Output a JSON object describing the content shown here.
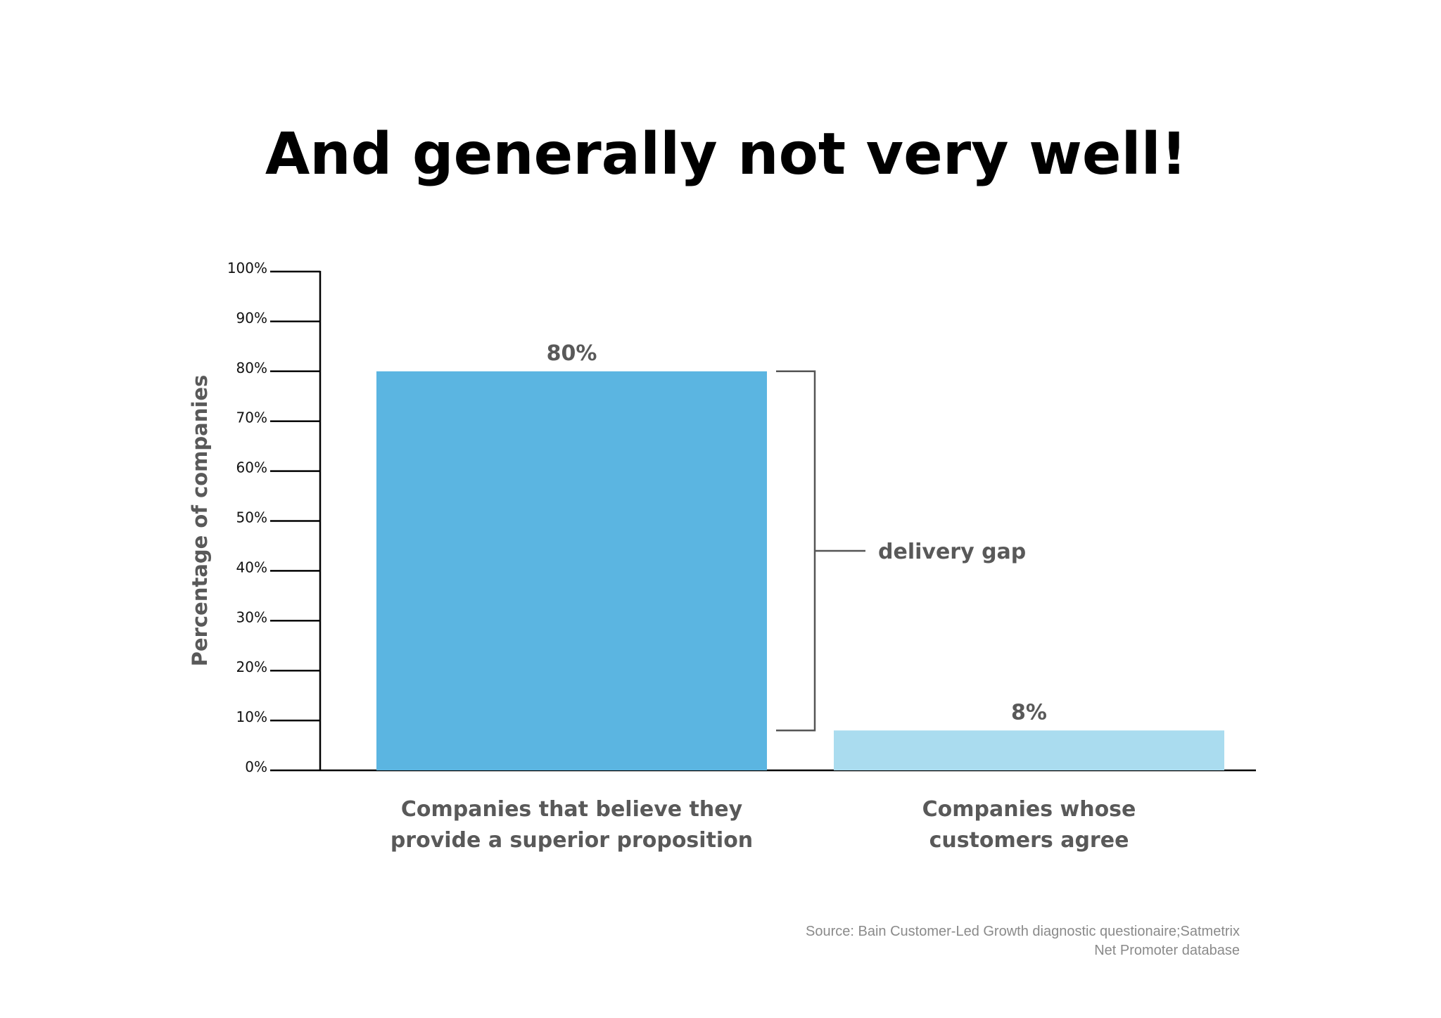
{
  "chart_data": {
    "type": "bar",
    "title": "And generally not very well!",
    "ylabel": "Percentage of companies",
    "xlabel": "",
    "ylim": [
      0,
      100
    ],
    "y_ticks": [
      0,
      10,
      20,
      30,
      40,
      50,
      60,
      70,
      80,
      90,
      100
    ],
    "y_tick_labels": [
      "0%",
      "10%",
      "20%",
      "30%",
      "40%",
      "50%",
      "60%",
      "70%",
      "80%",
      "90%",
      "100%"
    ],
    "grid": false,
    "categories": [
      [
        "Companies that believe they",
        "provide a superior proposition"
      ],
      [
        "Companies whose",
        "customers agree"
      ]
    ],
    "values": [
      80,
      8
    ],
    "value_labels": [
      "80%",
      "8%"
    ],
    "bar_colors": [
      "#5bb5e1",
      "#aadcef"
    ],
    "annotation": {
      "text": "delivery gap",
      "from": 8,
      "to": 80
    },
    "source": [
      "Source: Bain Customer-Led Growth diagnostic questionaire;Satmetrix",
      "Net Promoter database"
    ]
  },
  "colors": {
    "axis": "#000000",
    "bracket": "#555555",
    "text_gray": "#595959",
    "source_gray": "#8a8a8a"
  }
}
